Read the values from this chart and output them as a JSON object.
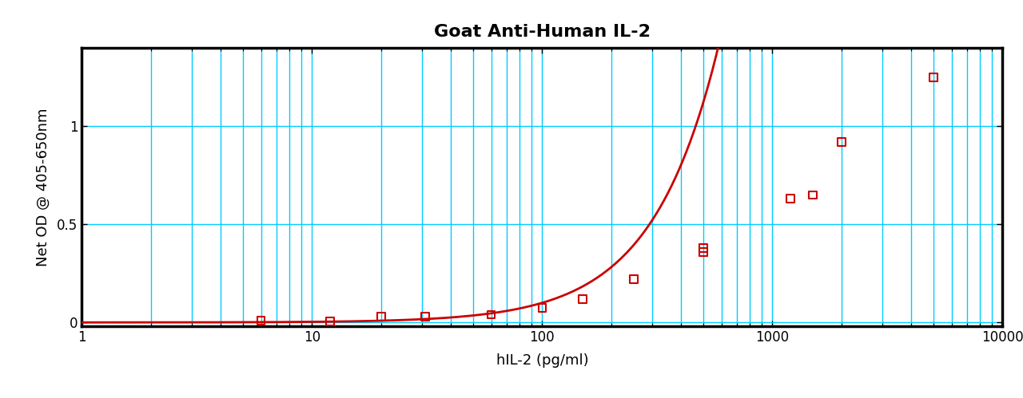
{
  "title": "Goat Anti-Human IL-2",
  "xlabel": "hIL-2 (pg/ml)",
  "ylabel": "Net OD @ 405-650nm",
  "data_x": [
    6,
    12,
    20,
    31,
    60,
    100,
    150,
    250,
    500,
    500,
    1200,
    1500,
    2000,
    5000
  ],
  "data_y": [
    0.008,
    0.005,
    0.03,
    0.03,
    0.04,
    0.075,
    0.12,
    0.22,
    0.36,
    0.38,
    0.63,
    0.65,
    0.92,
    1.25
  ],
  "xlim_log": [
    1,
    10000
  ],
  "ylim": [
    -0.02,
    1.4
  ],
  "yticks": [
    0.0,
    0.5,
    1.0
  ],
  "line_color": "#CC0000",
  "marker_color": "#CC0000",
  "grid_color": "#00CCFF",
  "bg_color": "#FFFFFF",
  "plot_bg_color": "#FFFFFF",
  "title_fontsize": 16,
  "label_fontsize": 13,
  "tick_fontsize": 12,
  "line_width": 2.0,
  "marker_size": 7,
  "border_color": "#000000",
  "border_width": 2.5
}
